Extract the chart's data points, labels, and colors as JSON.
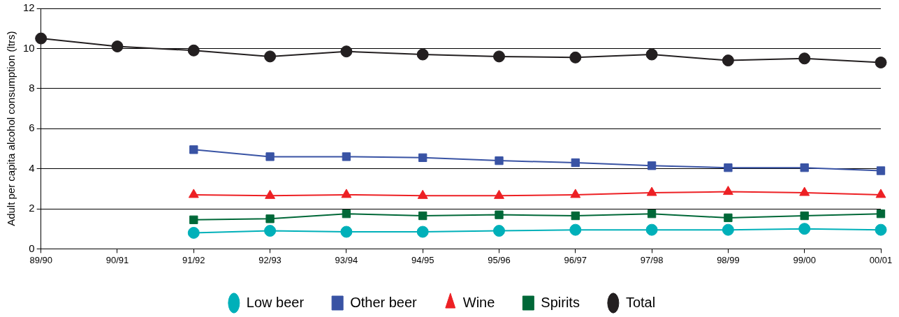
{
  "chart_data": {
    "type": "line",
    "ylabel": "Adult per capita alcohol consumption (ltrs)",
    "categories": [
      "89/90",
      "90/91",
      "91/92",
      "92/93",
      "93/94",
      "94/95",
      "95/96",
      "96/97",
      "97/98",
      "98/99",
      "99/00",
      "00/01"
    ],
    "series": [
      {
        "name": "Low beer",
        "color": "#00b0b9",
        "marker": "circle",
        "values": [
          null,
          null,
          0.8,
          0.9,
          0.85,
          0.85,
          0.9,
          0.95,
          0.95,
          0.95,
          1.0,
          0.95
        ]
      },
      {
        "name": "Other beer",
        "color": "#3953a4",
        "marker": "square",
        "values": [
          null,
          null,
          4.95,
          4.6,
          4.6,
          4.55,
          4.4,
          4.3,
          4.15,
          4.05,
          4.05,
          3.9
        ]
      },
      {
        "name": "Wine",
        "color": "#ed2024",
        "marker": "triangle",
        "values": [
          null,
          null,
          2.7,
          2.65,
          2.7,
          2.65,
          2.65,
          2.7,
          2.8,
          2.85,
          2.8,
          2.7
        ]
      },
      {
        "name": "Spirits",
        "color": "#006838",
        "marker": "square",
        "values": [
          null,
          null,
          1.45,
          1.5,
          1.75,
          1.65,
          1.7,
          1.65,
          1.75,
          1.55,
          1.65,
          1.75
        ]
      },
      {
        "name": "Total",
        "color": "#231f20",
        "marker": "circle",
        "values": [
          10.5,
          10.1,
          9.9,
          9.6,
          9.85,
          9.7,
          9.6,
          9.55,
          9.7,
          9.4,
          9.5,
          9.3
        ]
      }
    ],
    "ylim": [
      0,
      12
    ],
    "yticks": [
      0,
      2,
      4,
      6,
      8,
      10,
      12
    ],
    "grid": "y",
    "legend": "bottom",
    "line_style": "solid"
  }
}
